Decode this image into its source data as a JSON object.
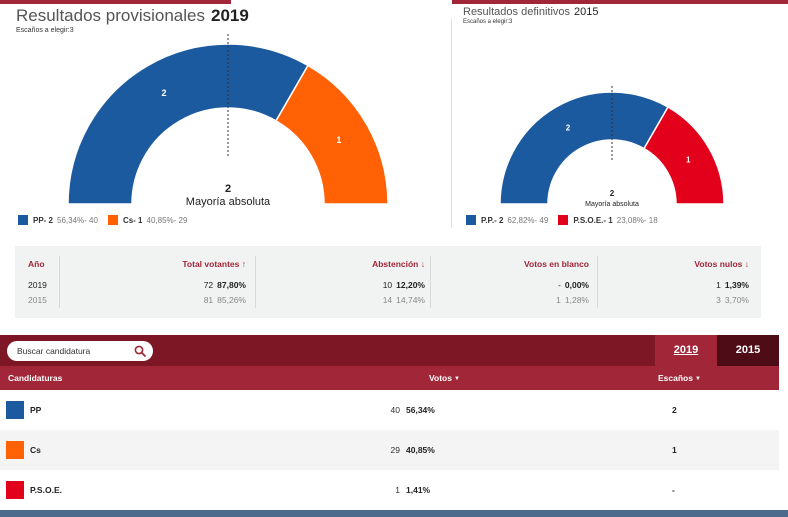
{
  "colors": {
    "brand_red": "#a02638",
    "brand_dark": "#7d1726",
    "pp": "#1b5a9e",
    "cs": "#ff6104",
    "psoe": "#e3001b"
  },
  "provisional": {
    "title": "Resultados provisionales",
    "year": "2019",
    "subtitle": "Escaños a elegir:3",
    "majority_number": "2",
    "majority_label": "Mayoría absoluta",
    "legend": [
      {
        "label": "PP- 2",
        "detail": "56,34%- 40",
        "color": "#1b5a9e"
      },
      {
        "label": "Cs- 1",
        "detail": "40,85%- 29",
        "color": "#ff6104"
      }
    ]
  },
  "definitive": {
    "title": "Resultados definitivos",
    "year": "2015",
    "subtitle": "Escaños a elegir:3",
    "majority_number": "2",
    "majority_label": "Mayoría absoluta",
    "legend": [
      {
        "label": "P.P.- 2",
        "detail": "62,82%- 49",
        "color": "#1b5a9e"
      },
      {
        "label": "P.S.O.E.- 1",
        "detail": "23,08%- 18",
        "color": "#e3001b"
      }
    ]
  },
  "chart_data": [
    {
      "type": "pie",
      "title": "Resultados provisionales 2019",
      "total_seats": 3,
      "series": [
        {
          "name": "PP",
          "seats": 2,
          "color": "#1b5a9e"
        },
        {
          "name": "Cs",
          "seats": 1,
          "color": "#ff6104"
        }
      ]
    },
    {
      "type": "pie",
      "title": "Resultados definitivos 2015",
      "total_seats": 3,
      "series": [
        {
          "name": "P.P.",
          "seats": 2,
          "color": "#1b5a9e"
        },
        {
          "name": "P.S.O.E.",
          "seats": 1,
          "color": "#e3001b"
        }
      ]
    }
  ],
  "stats": {
    "headers": {
      "year": "Año",
      "total": "Total votantes",
      "abstention": "Abstención",
      "blank": "Votos en blanco",
      "null": "Votos nulos"
    },
    "rows": [
      {
        "year": "2019",
        "total_n": "72",
        "total_p": "87,80%",
        "abst_n": "10",
        "abst_p": "12,20%",
        "blank_n": "-",
        "blank_p": "0,00%",
        "null_n": "1",
        "null_p": "1,39%"
      },
      {
        "year": "2015",
        "total_n": "81",
        "total_p": "85,26%",
        "abst_n": "14",
        "abst_p": "14,74%",
        "blank_n": "1",
        "blank_p": "1,28%",
        "null_n": "3",
        "null_p": "3,70%"
      }
    ]
  },
  "search": {
    "placeholder": "Buscar candidatura"
  },
  "tabs": {
    "t2019": "2019",
    "t2015": "2015"
  },
  "table": {
    "headers": {
      "party": "Candidaturas",
      "votes": "Votos",
      "seats": "Escaños"
    },
    "rows": [
      {
        "name": "PP",
        "votes": "40",
        "pct": "56,34%",
        "seats": "2",
        "color": "#1b5a9e"
      },
      {
        "name": "Cs",
        "votes": "29",
        "pct": "40,85%",
        "seats": "1",
        "color": "#ff6104"
      },
      {
        "name": "P.S.O.E.",
        "votes": "1",
        "pct": "1,41%",
        "seats": "-",
        "color": "#e3001b"
      }
    ]
  }
}
